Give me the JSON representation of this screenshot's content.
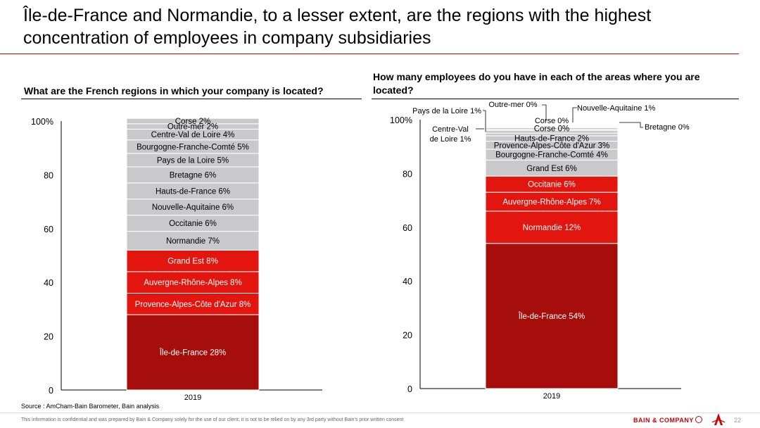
{
  "title": "Île-de-France and Normandie, to a lesser extent, are the regions with the highest concentration of employees in company subsidiaries",
  "footer": {
    "source": "Source : AmCham-Bain Barometer, Bain analysis",
    "disclaimer": "This information is confidential and was prepared by Bain & Company solely for the use of our client; it is not to be relied on by any 3rd party without Bain's prior written consent",
    "brand": "BAIN & COMPANY",
    "page": "22"
  },
  "colors": {
    "grey": "#c9c9cc",
    "red": "#e3150f",
    "dark_red": "#a50e0a",
    "rule": "#cc0000"
  },
  "chart_data": [
    {
      "type": "bar",
      "stacked": true,
      "title": "What are the French regions in which your company is located?",
      "categories": [
        "2019"
      ],
      "ylim": [
        0,
        100
      ],
      "yticks": [
        "0",
        "20",
        "40",
        "60",
        "80",
        "100%"
      ],
      "series": [
        {
          "name": "Île-de-France",
          "label": "Île-de-France 28%",
          "value": 28,
          "color": "dark"
        },
        {
          "name": "Provence-Alpes-Côte d'Azur",
          "label": "Provence-Alpes-Côte d'Azur 8%",
          "value": 8,
          "color": "red"
        },
        {
          "name": "Auvergne-Rhône-Alpes",
          "label": "Auvergne-Rhône-Alpes 8%",
          "value": 8,
          "color": "red"
        },
        {
          "name": "Grand Est",
          "label": "Grand Est 8%",
          "value": 8,
          "color": "red"
        },
        {
          "name": "Normandie",
          "label": "Normandie 7%",
          "value": 7,
          "color": "grey"
        },
        {
          "name": "Occitanie",
          "label": "Occitanie 6%",
          "value": 6,
          "color": "grey"
        },
        {
          "name": "Nouvelle-Aquitaine",
          "label": "Nouvelle-Aquitaine 6%",
          "value": 6,
          "color": "grey"
        },
        {
          "name": "Hauts-de-France",
          "label": "Hauts-de-France 6%",
          "value": 6,
          "color": "grey"
        },
        {
          "name": "Bretagne",
          "label": "Bretagne 6%",
          "value": 6,
          "color": "grey"
        },
        {
          "name": "Pays de la Loire",
          "label": "Pays de la Loire 5%",
          "value": 5,
          "color": "grey"
        },
        {
          "name": "Bourgogne-Franche-Comté",
          "label": "Bourgogne-Franche-Comté 5%",
          "value": 5,
          "color": "grey"
        },
        {
          "name": "Centre-Val de Loire",
          "label": "Centre-Val de Loire 4%",
          "value": 4,
          "color": "grey"
        },
        {
          "name": "Outre-mer",
          "label": "Outre-mer 2%",
          "value": 2,
          "color": "grey"
        },
        {
          "name": "Corse",
          "label": "Corse 2%",
          "value": 2,
          "color": "grey"
        }
      ]
    },
    {
      "type": "bar",
      "stacked": true,
      "title": "How many employees do you have in each of the areas where you are located?",
      "categories": [
        "2019"
      ],
      "ylim": [
        0,
        100
      ],
      "yticks": [
        "0",
        "20",
        "40",
        "60",
        "80",
        "100%"
      ],
      "series": [
        {
          "name": "Île-de-France",
          "label": "Île-de-France 54%",
          "value": 54,
          "color": "dark"
        },
        {
          "name": "Normandie",
          "label": "Normandie 12%",
          "value": 12,
          "color": "red"
        },
        {
          "name": "Auvergne-Rhône-Alpes",
          "label": "Auvergne-Rhône-Alpes 7%",
          "value": 7,
          "color": "red"
        },
        {
          "name": "Occitanie",
          "label": "Occitanie 6%",
          "value": 6,
          "color": "red"
        },
        {
          "name": "Grand Est",
          "label": "Grand Est 6%",
          "value": 6,
          "color": "grey"
        },
        {
          "name": "Bourgogne-Franche-Comté",
          "label": "Bourgogne-Franche-Comté 4%",
          "value": 4,
          "color": "grey"
        },
        {
          "name": "Provence-Alpes-Côte d'Azur",
          "label": "Provence-Alpes-Côte d'Azur 3%",
          "value": 3,
          "color": "grey"
        },
        {
          "name": "Hauts-de-France",
          "label": "Hauts-de-France 2%",
          "value": 2,
          "color": "grey"
        },
        {
          "name": "Centre-Val de Loire",
          "label": "Centre-Val de Loire 1%",
          "value": 1,
          "color": "grey"
        },
        {
          "name": "Pays de la Loire",
          "label": "Pays de la Loire 1%",
          "value": 1,
          "color": "grey"
        },
        {
          "name": "Nouvelle-Aquitaine",
          "label": "Nouvelle-Aquitaine 1%",
          "value": 1,
          "color": "grey"
        },
        {
          "name": "Corse",
          "label": "Corse 0%",
          "value": 0,
          "color": "grey"
        },
        {
          "name": "Outre-mer",
          "label": "Outre-mer 0%",
          "value": 0,
          "color": "grey"
        },
        {
          "name": "Bretagne",
          "label": "Bretagne 0%",
          "value": 0,
          "color": "grey"
        }
      ],
      "callouts": {
        "Pays de la Loire": "Pays de la Loire 1%",
        "Centre-Val de Loire": [
          "Centre-Val",
          "de Loire 1%"
        ],
        "Outre-mer": "Outre-mer 0%",
        "Nouvelle-Aquitaine": "Nouvelle-Aquitaine 1%",
        "Bretagne": "Bretagne 0%"
      }
    }
  ]
}
